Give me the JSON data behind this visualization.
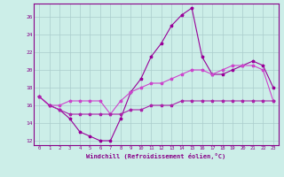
{
  "xlabel": "Windchill (Refroidissement éolien,°C)",
  "x_values": [
    0,
    1,
    2,
    3,
    4,
    5,
    6,
    7,
    8,
    9,
    10,
    11,
    12,
    13,
    14,
    15,
    16,
    17,
    18,
    19,
    20,
    21,
    22,
    23
  ],
  "line1": [
    17.0,
    16.0,
    15.5,
    14.5,
    13.0,
    12.5,
    12.0,
    12.0,
    14.5,
    17.5,
    19.0,
    21.5,
    23.0,
    25.0,
    26.2,
    27.0,
    21.5,
    19.5,
    19.5,
    20.0,
    20.5,
    21.0,
    20.5,
    18.0
  ],
  "line2": [
    17.0,
    16.0,
    16.0,
    16.5,
    16.5,
    16.5,
    16.5,
    15.0,
    16.5,
    17.5,
    18.0,
    18.5,
    18.5,
    19.0,
    19.5,
    20.0,
    20.0,
    19.5,
    20.0,
    20.5,
    20.5,
    20.5,
    20.0,
    16.5
  ],
  "line3": [
    17.0,
    16.0,
    15.5,
    15.0,
    15.0,
    15.0,
    15.0,
    15.0,
    15.0,
    15.5,
    15.5,
    16.0,
    16.0,
    16.0,
    16.5,
    16.5,
    16.5,
    16.5,
    16.5,
    16.5,
    16.5,
    16.5,
    16.5,
    16.5
  ],
  "line_color1": "#990099",
  "line_color2": "#cc44cc",
  "line_color3": "#aa22aa",
  "bg_color": "#cceee8",
  "grid_color": "#aacccc",
  "axis_color": "#880088",
  "text_color": "#880088",
  "ylim": [
    11.5,
    27.5
  ],
  "yticks": [
    12,
    14,
    16,
    18,
    20,
    22,
    24,
    26
  ],
  "xlim": [
    -0.5,
    23.5
  ],
  "marker": "*",
  "marker_size": 2.5,
  "linewidth": 0.8
}
